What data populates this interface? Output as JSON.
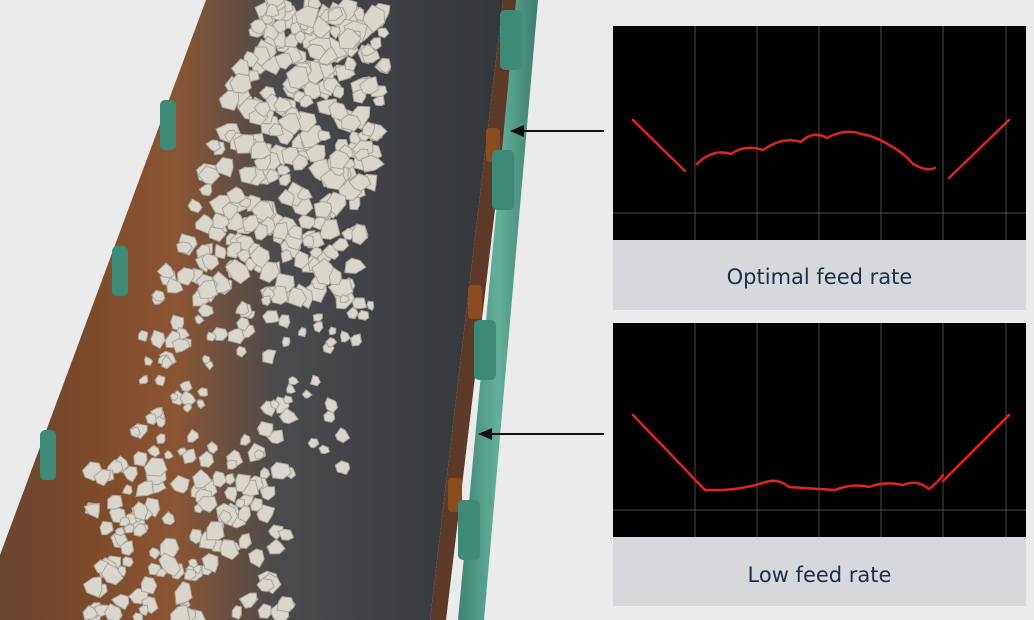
{
  "panels": [
    {
      "caption": "Optimal feed rate",
      "profile": "optimal",
      "line_color": "#e02424"
    },
    {
      "caption": "Low feed rate",
      "profile": "low",
      "line_color": "#e02424"
    }
  ],
  "colors": {
    "belt": "#3f4448",
    "rust": "#7a4a2c",
    "frame": "#4f9a86",
    "rock": "#d9d6cc",
    "background": "#ebebeb",
    "panel": "#d6d8db",
    "caption": "#1c2f4a"
  }
}
